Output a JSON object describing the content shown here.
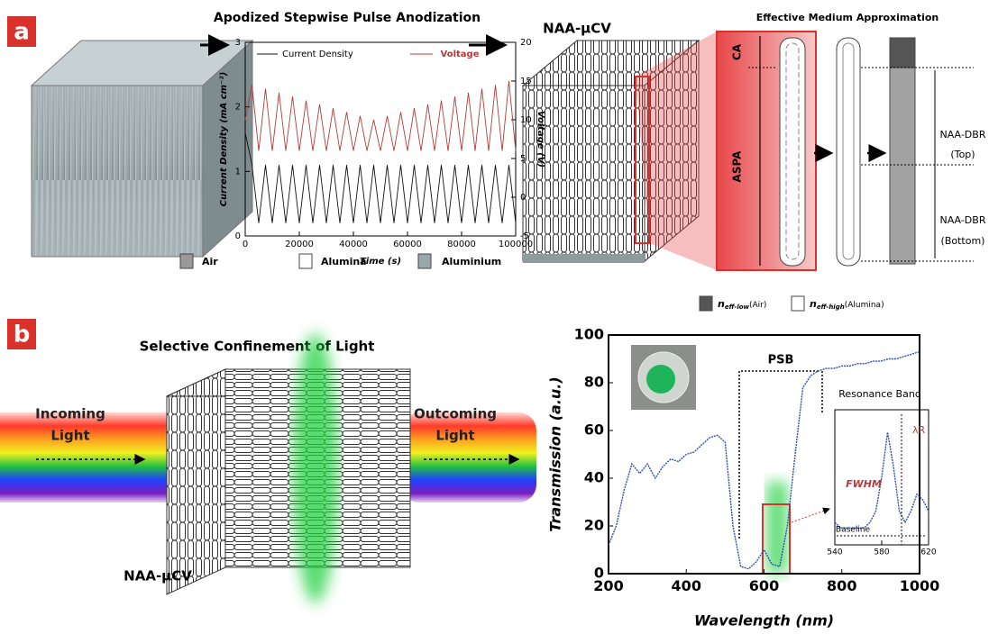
{
  "figure": {
    "panel_a": "a",
    "panel_b": "b",
    "cv_label_top": "NAA-μCV",
    "ema_title": "Effective Medium Approximation",
    "ca": "CA",
    "aspa": "ASPA",
    "dbr": "NAA-DBR",
    "top": "(Top)",
    "bottom": "(Bottom)",
    "legend_air": "Air",
    "legend_alumina": "Alumina",
    "legend_aluminium": "Aluminium",
    "n_symbol": "n",
    "n_low_sub": "eff-low",
    "n_low_label": "(Air)",
    "n_high_sub": "eff-high",
    "n_high_label": "(Alumina)",
    "confinement_title": "Selective Confinement of Light",
    "incoming_1": "Incoming",
    "incoming_2": "Light",
    "outcoming_1": "Outcoming",
    "outcoming_2": "Light",
    "cv_label_bottom": "NAA-μCV"
  },
  "chart_data": [
    {
      "type": "line",
      "title": "Apodized Stepwise Pulse Anodization",
      "xlabel": "Time (s)",
      "ylabel": "Current Density (mA cm⁻²)",
      "y2label": "Voltage (V)",
      "x": [
        0,
        2500,
        5000,
        7500,
        10000,
        12500,
        15000,
        17500,
        20000,
        22500,
        25000,
        27500,
        30000,
        32500,
        35000,
        37500,
        40000,
        42500,
        45000,
        47500,
        50000,
        52500,
        55000,
        57500,
        60000,
        62500,
        65000,
        67500,
        70000,
        72500,
        75000,
        77500,
        80000,
        82500,
        85000,
        87500,
        90000,
        92500,
        95000,
        97500,
        100000
      ],
      "xlim": [
        0,
        100000
      ],
      "xticks": [
        0,
        20000,
        40000,
        60000,
        80000,
        100000
      ],
      "ylim": [
        0,
        3
      ],
      "yticks": [
        0,
        1,
        2,
        3
      ],
      "y2lim": [
        -5,
        20
      ],
      "y2ticks": [
        -5,
        0,
        5,
        10,
        15,
        20
      ],
      "series": [
        {
          "name": "Current Density",
          "color": "#111111",
          "values": [
            1.6,
            1.1,
            0.2,
            1.1,
            0.2,
            1.1,
            0.2,
            1.1,
            0.2,
            1.1,
            0.2,
            1.1,
            0.2,
            1.1,
            0.2,
            1.1,
            0.2,
            1.1,
            0.2,
            1.1,
            0.2,
            1.1,
            0.2,
            1.1,
            0.2,
            1.1,
            0.2,
            1.1,
            0.2,
            1.1,
            0.2,
            1.1,
            0.2,
            1.1,
            0.2,
            1.1,
            0.2,
            1.1,
            0.2,
            1.1,
            0.2
          ]
        },
        {
          "name": "Voltage",
          "color": "#b23b3b",
          "axis": "y2",
          "values": [
            10,
            14.5,
            6,
            14,
            6,
            13.5,
            6,
            13,
            6,
            12.5,
            6,
            12,
            6,
            11.5,
            6,
            11,
            6,
            10.5,
            6,
            10,
            6,
            10.5,
            6,
            11,
            6,
            11.5,
            6,
            12,
            6,
            12.5,
            6,
            13,
            6,
            13.5,
            6,
            14,
            6,
            14.5,
            6,
            15,
            6
          ]
        }
      ]
    },
    {
      "type": "line",
      "xlabel": "Wavelength (nm)",
      "ylabel": "Transmission (a.u.)",
      "x": [
        200,
        220,
        240,
        260,
        280,
        300,
        320,
        340,
        360,
        380,
        400,
        420,
        440,
        460,
        480,
        500,
        520,
        540,
        560,
        580,
        600,
        620,
        640,
        660,
        680,
        700,
        720,
        740,
        760,
        780,
        800,
        820,
        840,
        860,
        880,
        900,
        920,
        940,
        960,
        980,
        1000
      ],
      "xlim": [
        200,
        1000
      ],
      "xticks": [
        200,
        400,
        600,
        800,
        1000
      ],
      "ylim": [
        0,
        100
      ],
      "yticks": [
        0,
        20,
        40,
        60,
        80,
        100
      ],
      "series": [
        {
          "color": "#2f4fb0",
          "values": [
            12,
            20,
            35,
            46,
            42,
            46,
            40,
            45,
            48,
            47,
            50,
            51,
            54,
            57,
            58,
            55,
            20,
            3,
            2,
            5,
            10,
            4,
            3,
            20,
            50,
            78,
            83,
            85,
            86,
            86,
            87,
            87,
            88,
            88,
            89,
            89,
            90,
            90,
            91,
            92,
            93
          ]
        }
      ],
      "annotations": {
        "psb": "PSB"
      }
    },
    {
      "type": "line",
      "title": "Resonance Band",
      "x": [
        540,
        545,
        550,
        555,
        560,
        565,
        570,
        575,
        580,
        585,
        590,
        595,
        600,
        605,
        610,
        615,
        620
      ],
      "xlim": [
        540,
        620
      ],
      "xticks": [
        540,
        580,
        620
      ],
      "ylim": [
        0,
        12
      ],
      "series": [
        {
          "color": "#2f4fb0",
          "values": [
            2,
            1.5,
            1.5,
            1.5,
            1.5,
            1.5,
            2,
            3,
            6,
            10,
            7,
            3,
            2,
            3,
            4.5,
            4,
            3
          ]
        }
      ],
      "annotations": {
        "peak": "λR",
        "fwhm": "FWHM",
        "baseline": "Baseline"
      }
    }
  ]
}
